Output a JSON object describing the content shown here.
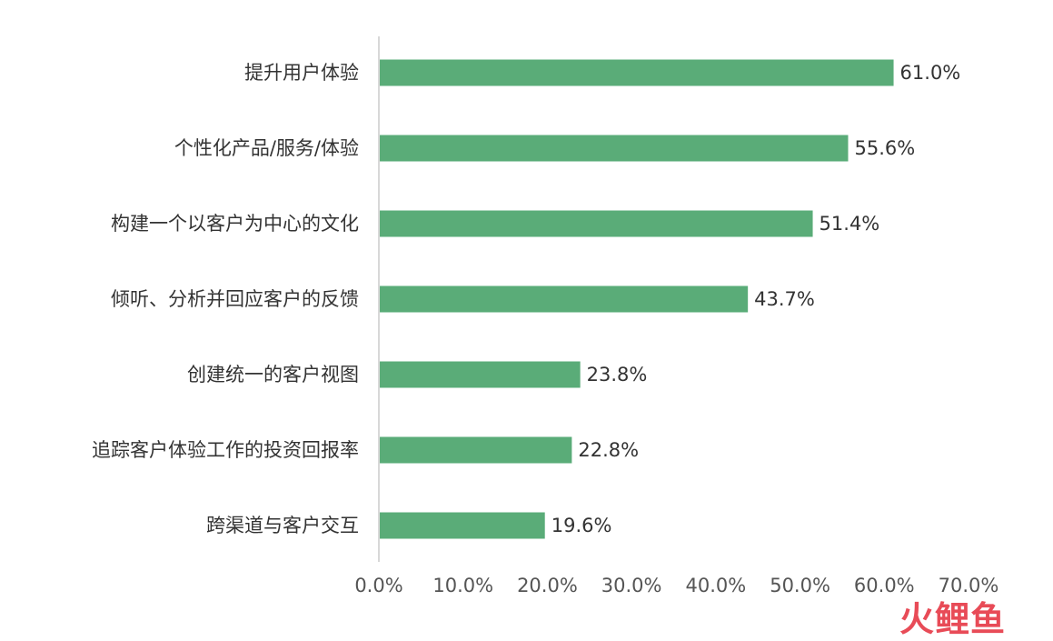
{
  "chart_data": {
    "type": "bar",
    "orientation": "horizontal",
    "categories": [
      "提升用户体验",
      "个性化产品/服务/体验",
      "构建一个以客户为中心的文化",
      "倾听、分析并回应客户的反馈",
      "创建统一的客户视图",
      "追踪客户体验工作的投资回报率",
      "跨渠道与客户交互"
    ],
    "values": [
      61.0,
      55.6,
      51.4,
      43.7,
      23.8,
      22.8,
      19.6
    ],
    "data_labels": [
      "61.0%",
      "55.6%",
      "51.4%",
      "43.7%",
      "23.8%",
      "22.8%",
      "19.6%"
    ],
    "xlim": [
      0,
      70
    ],
    "x_ticks": [
      0,
      10,
      20,
      30,
      40,
      50,
      60,
      70
    ],
    "x_tick_labels": [
      "0.0%",
      "10.0%",
      "20.0%",
      "30.0%",
      "40.0%",
      "50.0%",
      "60.0%",
      "70.0%"
    ],
    "title": "",
    "xlabel": "",
    "ylabel": "",
    "grid": false,
    "legend": "none",
    "bar_color": "#5aac78"
  },
  "watermark": "火鲤鱼"
}
